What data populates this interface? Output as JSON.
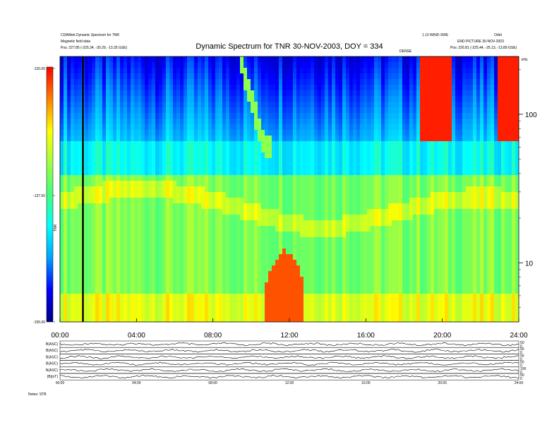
{
  "chart_data": {
    "type": "heatmap",
    "title": "Dynamic Spectrum for TNR 30-NOV-2003, DOY = 334",
    "header": {
      "left_line1": "CDAWeb Dynamic Spectrum for TNR",
      "left_line2": "Magnetic field data",
      "left_pos": "Pos:  227.85 (-225.34, -30.29, -13.35 GSE)",
      "right_line1": "1.10 WIND SWE",
      "right_line2": "Orbit",
      "right_line3": "END PICTURE 30-NOV-2003",
      "right_pos": "Pos:  226.81 (-225.44, -25.13, -13.89 GSE)",
      "center_small": "DENSE"
    },
    "colorbar": {
      "label": "TNR",
      "ticks": [
        "-120.00",
        "-137.50",
        "-155.00"
      ],
      "range": [
        -155,
        -120
      ],
      "colors": [
        "#000080",
        "#0000ff",
        "#00a0ff",
        "#00ffff",
        "#40ff80",
        "#a0ff40",
        "#ffff00",
        "#ff8000",
        "#ff0000"
      ]
    },
    "x_axis": {
      "ticks": [
        "00:00",
        "04:00",
        "08:00",
        "12:00",
        "16:00",
        "20:00",
        "24:00"
      ],
      "range_hours": [
        0,
        24
      ]
    },
    "y_axis": {
      "unit": "kHz",
      "scale": "log",
      "ticks": [
        "100",
        "10"
      ],
      "range": [
        4,
        245
      ]
    },
    "features": [
      {
        "kind": "diagonal_burst",
        "t_start": 9.5,
        "t_end": 10.7,
        "f_start": 220,
        "f_end": 60
      },
      {
        "kind": "bright_band",
        "t_start": 18.8,
        "t_end": 20.5,
        "f_low": 65,
        "f_high": 245
      },
      {
        "kind": "bright_band",
        "t_start": 22.8,
        "t_end": 24.0,
        "f_low": 65,
        "f_high": 245
      },
      {
        "kind": "low_freq_patch",
        "t_start": 10.8,
        "t_end": 12.8,
        "f_low": 4,
        "f_high": 12
      },
      {
        "kind": "vertical_line",
        "t": 1.2
      }
    ],
    "panels": [
      {
        "label": "B(ASC)",
        "right_ticks": [
          "50",
          "0"
        ]
      },
      {
        "label": "B(ASC)",
        "right_ticks": [
          "50",
          "0"
        ]
      },
      {
        "label": "B(ASC)",
        "right_ticks": [
          "50",
          "0"
        ]
      },
      {
        "label": "B(ASC)",
        "right_ticks": [
          "50",
          "0"
        ]
      },
      {
        "label": "N(ASC)",
        "right_ticks": [
          "100",
          "0"
        ]
      },
      {
        "label": "|B|(nT)",
        "right_ticks": [
          "50",
          "0"
        ]
      }
    ],
    "bottom_x_ticks": [
      "00:00",
      "04:00",
      "08:00",
      "12:00",
      "16:00",
      "20:00",
      "24:00"
    ],
    "footer_label": "Notes: STB"
  }
}
